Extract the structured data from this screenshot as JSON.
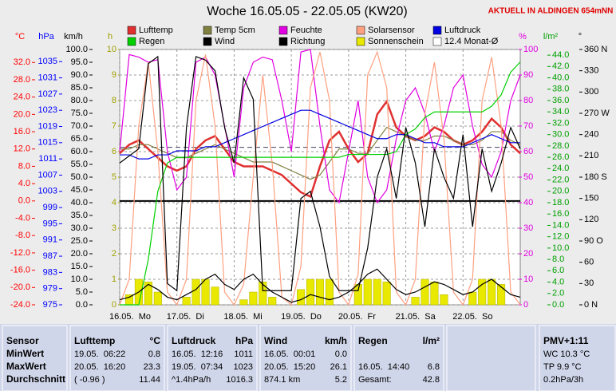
{
  "header": {
    "station": "AKTUELL IN ALDINGEN 654mNN"
  },
  "chart_data": {
    "type": "line",
    "title": "Woche 16.05.05 - 22.05.05 (KW20)",
    "xlim": [
      0,
      168
    ],
    "xticks": [
      {
        "value": 0,
        "label": "16.05.  Mo"
      },
      {
        "value": 24,
        "label": "17.05.  Di"
      },
      {
        "value": 48,
        "label": "18.05.  Mi"
      },
      {
        "value": 72,
        "label": "19.05.  Do"
      },
      {
        "value": 96,
        "label": "20.05.  Fr"
      },
      {
        "value": 120,
        "label": "21.05.  Sa"
      },
      {
        "value": 144,
        "label": "22.05.  So"
      }
    ],
    "grid": true,
    "axes": [
      {
        "label": "°C",
        "color": "#ff0000",
        "ylim": [
          -24,
          35
        ],
        "yticks": [
          {
            "value": 32,
            "label": "32.0"
          },
          {
            "value": 28,
            "label": "28.0"
          },
          {
            "value": 24,
            "label": "24.0"
          },
          {
            "value": 20,
            "label": "20.0"
          },
          {
            "value": 16,
            "label": "16.0"
          },
          {
            "value": 12,
            "label": "12.0"
          },
          {
            "value": 8,
            "label": "8.0"
          },
          {
            "value": 4,
            "label": "4.0"
          },
          {
            "value": 0,
            "label": "0.0"
          },
          {
            "value": -4,
            "label": "-4.0"
          },
          {
            "value": -8,
            "label": "-8.0"
          },
          {
            "value": -12,
            "label": "-12.0"
          },
          {
            "value": -16,
            "label": "-16.0"
          },
          {
            "value": -20,
            "label": "-20.0"
          },
          {
            "value": -24,
            "label": "-24.0"
          }
        ]
      },
      {
        "label": "hPa",
        "color": "#0000ff",
        "ylim": [
          975,
          1038
        ],
        "yticks": [
          1035,
          1031,
          1027,
          1023,
          1019,
          1015,
          1011,
          1007,
          1003,
          999,
          995,
          991,
          987,
          983,
          979,
          975
        ]
      },
      {
        "label": "km/h",
        "color": "#000000",
        "ylim": [
          0,
          100
        ],
        "yticks": [
          {
            "value": 100,
            "label": "100.0"
          },
          {
            "value": 95,
            "label": "95.0"
          },
          {
            "value": 90,
            "label": "90.0"
          },
          {
            "value": 85,
            "label": "85.0"
          },
          {
            "value": 80,
            "label": "80.0"
          },
          {
            "value": 75,
            "label": "75.0"
          },
          {
            "value": 70,
            "label": "70.0"
          },
          {
            "value": 65,
            "label": "65.0"
          },
          {
            "value": 60,
            "label": "60.0"
          },
          {
            "value": 55,
            "label": "55.0"
          },
          {
            "value": 50,
            "label": "50.0"
          },
          {
            "value": 45,
            "label": "45.0"
          },
          {
            "value": 40,
            "label": "40.0"
          },
          {
            "value": 35,
            "label": "35.0"
          },
          {
            "value": 30,
            "label": "30.0"
          },
          {
            "value": 25,
            "label": "25.0"
          },
          {
            "value": 20,
            "label": "20.0"
          },
          {
            "value": 15,
            "label": "15.0"
          },
          {
            "value": 10,
            "label": "10.0"
          },
          {
            "value": 5,
            "label": "5.0"
          },
          {
            "value": 0,
            "label": "0.0"
          }
        ]
      },
      {
        "label": "h",
        "color": "#a0a000",
        "ylim": [
          0,
          10
        ],
        "yticks": [
          10,
          9,
          8,
          7,
          6,
          5,
          4,
          3,
          2,
          1,
          0
        ]
      },
      {
        "label": "%",
        "color": "#e000e0",
        "ylim": [
          0,
          100
        ],
        "yticks": [
          100,
          90,
          80,
          70,
          60,
          50,
          40,
          30,
          20,
          10,
          0
        ]
      },
      {
        "label": "l/m²",
        "color": "#00a000",
        "ylim": [
          0,
          45
        ],
        "yticks": [
          {
            "value": 44,
            "label": "44.0"
          },
          {
            "value": 42,
            "label": "42.0"
          },
          {
            "value": 40,
            "label": "40.0"
          },
          {
            "value": 38,
            "label": "38.0"
          },
          {
            "value": 36,
            "label": "36.0"
          },
          {
            "value": 34,
            "label": "34.0"
          },
          {
            "value": 32,
            "label": "32.0"
          },
          {
            "value": 30,
            "label": "30.0"
          },
          {
            "value": 28,
            "label": "28.0"
          },
          {
            "value": 26,
            "label": "26.0"
          },
          {
            "value": 24,
            "label": "24.0"
          },
          {
            "value": 22,
            "label": "22.0"
          },
          {
            "value": 20,
            "label": "20.0"
          },
          {
            "value": 18,
            "label": "18.0"
          },
          {
            "value": 16,
            "label": "16.0"
          },
          {
            "value": 14,
            "label": "14.0"
          },
          {
            "value": 12,
            "label": "12.0"
          },
          {
            "value": 10,
            "label": "10.0"
          },
          {
            "value": 8,
            "label": "8.0"
          },
          {
            "value": 6,
            "label": "6.0"
          },
          {
            "value": 4,
            "label": "4.0"
          },
          {
            "value": 2,
            "label": "2.0"
          },
          {
            "value": 0,
            "label": "0.0"
          }
        ]
      },
      {
        "label": "°",
        "color": "#000000",
        "ylim": [
          0,
          360
        ],
        "yticks": [
          {
            "value": 360,
            "label": "360 N"
          },
          330,
          300,
          {
            "value": 270,
            "label": "270 W"
          },
          240,
          210,
          {
            "value": 180,
            "label": "180 S"
          },
          150,
          120,
          {
            "value": 90,
            "label": "90 O"
          },
          60,
          30,
          {
            "value": 0,
            "label": "0 N"
          }
        ]
      }
    ],
    "x": [
      0,
      4,
      8,
      12,
      16,
      20,
      24,
      28,
      32,
      36,
      40,
      44,
      48,
      52,
      56,
      60,
      64,
      68,
      72,
      76,
      80,
      84,
      88,
      92,
      96,
      100,
      104,
      108,
      112,
      116,
      120,
      124,
      128,
      132,
      136,
      140,
      144,
      148,
      152,
      156,
      160,
      164,
      168
    ],
    "series": [
      {
        "name": "Lufttemp",
        "color": "#e03030",
        "axis": 0,
        "values": [
          11,
          13,
          14,
          12,
          10,
          8,
          7,
          8,
          12,
          14,
          15,
          12,
          9,
          8,
          8,
          8,
          7,
          6,
          4,
          2,
          1,
          8,
          14,
          16,
          12,
          9,
          11,
          20,
          23,
          17,
          15,
          14,
          15,
          17,
          16,
          14,
          13,
          14,
          16,
          19,
          17,
          13,
          11
        ]
      },
      {
        "name": "Temp 5cm",
        "color": "#808040",
        "axis": 0,
        "values": [
          12,
          12,
          13,
          13,
          12,
          11,
          10,
          10,
          11,
          12,
          13,
          12,
          11,
          10,
          9,
          9,
          9,
          8,
          7,
          6,
          5,
          6,
          9,
          12,
          12,
          11,
          11,
          14,
          17,
          16,
          15,
          14,
          14,
          15,
          15,
          14,
          13,
          13,
          14,
          16,
          16,
          14,
          13
        ]
      },
      {
        "name": "Feuchte",
        "color": "#e000e0",
        "axis": 4,
        "values": [
          60,
          98,
          97,
          95,
          96,
          60,
          45,
          50,
          95,
          97,
          90,
          70,
          50,
          85,
          95,
          97,
          96,
          80,
          60,
          99,
          100,
          70,
          45,
          40,
          60,
          80,
          50,
          40,
          45,
          65,
          80,
          85,
          75,
          60,
          70,
          85,
          90,
          70,
          55,
          50,
          60,
          80,
          90
        ]
      },
      {
        "name": "Solarsensor",
        "color": "#ffa080",
        "axis": 4,
        "values": [
          0,
          10,
          70,
          95,
          60,
          5,
          0,
          10,
          80,
          98,
          70,
          5,
          0,
          8,
          50,
          90,
          55,
          3,
          0,
          15,
          85,
          99,
          80,
          5,
          0,
          12,
          90,
          99,
          85,
          5,
          0,
          10,
          75,
          95,
          65,
          5,
          0,
          10,
          80,
          97,
          70,
          5,
          0
        ]
      },
      {
        "name": "Luftdruck",
        "color": "#0000e0",
        "axis": 1,
        "values": [
          1012,
          1012,
          1011,
          1011,
          1012,
          1012,
          1013,
          1013,
          1013,
          1014,
          1014,
          1015,
          1016,
          1017,
          1018,
          1019,
          1020,
          1021,
          1022,
          1023,
          1023,
          1022,
          1021,
          1020,
          1019,
          1018,
          1017,
          1016,
          1016,
          1017,
          1017,
          1016,
          1015,
          1015,
          1014,
          1014,
          1014,
          1015,
          1016,
          1017,
          1016,
          1015,
          1015
        ]
      },
      {
        "name": "Regen",
        "color": "#00d000",
        "axis": 5,
        "values": [
          0,
          0,
          0,
          8,
          20,
          25,
          26,
          26,
          26,
          26,
          26,
          26,
          26,
          26,
          26,
          26,
          26,
          26,
          26,
          26,
          26,
          26,
          26,
          26,
          26.5,
          26.5,
          26.5,
          26.5,
          26.5,
          27,
          30,
          31,
          33,
          34,
          34,
          34,
          34,
          34,
          34,
          35,
          37,
          41,
          42.8
        ]
      },
      {
        "name": "Wind",
        "color": "#000000",
        "axis": 2,
        "values": [
          2,
          3,
          5,
          8,
          6,
          3,
          2,
          4,
          6,
          10,
          12,
          8,
          6,
          10,
          12,
          8,
          5,
          3,
          1,
          2,
          4,
          3,
          2,
          3,
          5,
          8,
          12,
          14,
          10,
          6,
          4,
          5,
          7,
          9,
          8,
          6,
          4,
          5,
          8,
          10,
          7,
          4,
          3
        ]
      },
      {
        "name": "Richtung",
        "color": "#000000",
        "axis": 6,
        "values": [
          200,
          210,
          220,
          340,
          350,
          30,
          20,
          250,
          350,
          345,
          330,
          250,
          200,
          320,
          290,
          20,
          20,
          20,
          20,
          150,
          160,
          110,
          40,
          20,
          20,
          20,
          80,
          180,
          220,
          150,
          250,
          200,
          110,
          220,
          180,
          150,
          240,
          110,
          220,
          160,
          200,
          250,
          220
        ]
      },
      {
        "name": "Sonnenschein",
        "color": "#e8e800",
        "axis": 3,
        "style": "bar",
        "values": [
          0,
          0.4,
          1.0,
          0.9,
          0.5,
          0,
          0,
          0.3,
          1.0,
          1.0,
          0.7,
          0,
          0,
          0.2,
          0.5,
          0.9,
          0.3,
          0,
          0,
          0.6,
          1.0,
          1.0,
          1.0,
          0,
          0,
          0.8,
          1.0,
          1.0,
          0.9,
          0,
          0,
          0.3,
          1.0,
          0.9,
          0.4,
          0,
          0,
          0.5,
          1.0,
          1.0,
          0.8,
          0,
          0
        ]
      }
    ],
    "monthly_mean": {
      "name": "12.4 Monat-Ø",
      "value": 12.4,
      "axis": 0
    }
  },
  "table": {
    "header": {
      "sensor": "Sensor",
      "lufttemp": [
        "Lufttemp",
        "°C"
      ],
      "luftdruck": [
        "Luftdruck",
        "hPa"
      ],
      "wind": [
        "Wind",
        "km/h"
      ],
      "regen": [
        "Regen",
        "l/m²"
      ],
      "pmv": "PMV+1:11"
    },
    "rows": [
      {
        "label": "MinWert",
        "lufttemp": [
          "19.05.  06:22",
          "0.8"
        ],
        "luftdruck": [
          "16.05.  12:16",
          "1011"
        ],
        "wind": [
          "16.05.  00:01",
          "0.0"
        ],
        "pmv": "WC 10.3 °C"
      },
      {
        "label": "MaxWert",
        "lufttemp": [
          "20.05.  16:20",
          "23.3"
        ],
        "luftdruck": [
          "19.05.  07:34",
          "1023"
        ],
        "wind": [
          "20.05.  15:20",
          "26.1"
        ],
        "regen": [
          "16.05.  14:40",
          "6.8"
        ],
        "pmv": "TP 9.9 °C"
      },
      {
        "label": "Durchschnitt",
        "lufttemp": [
          "( -0.96 )",
          "11.44"
        ],
        "luftdruck": [
          "^1.4hPa/h",
          "1016.3"
        ],
        "wind": [
          "874.1 km",
          "5.2"
        ],
        "regen": [
          "Gesamt:",
          "42.8"
        ],
        "pmv": "0.2hPa/3h"
      }
    ]
  }
}
